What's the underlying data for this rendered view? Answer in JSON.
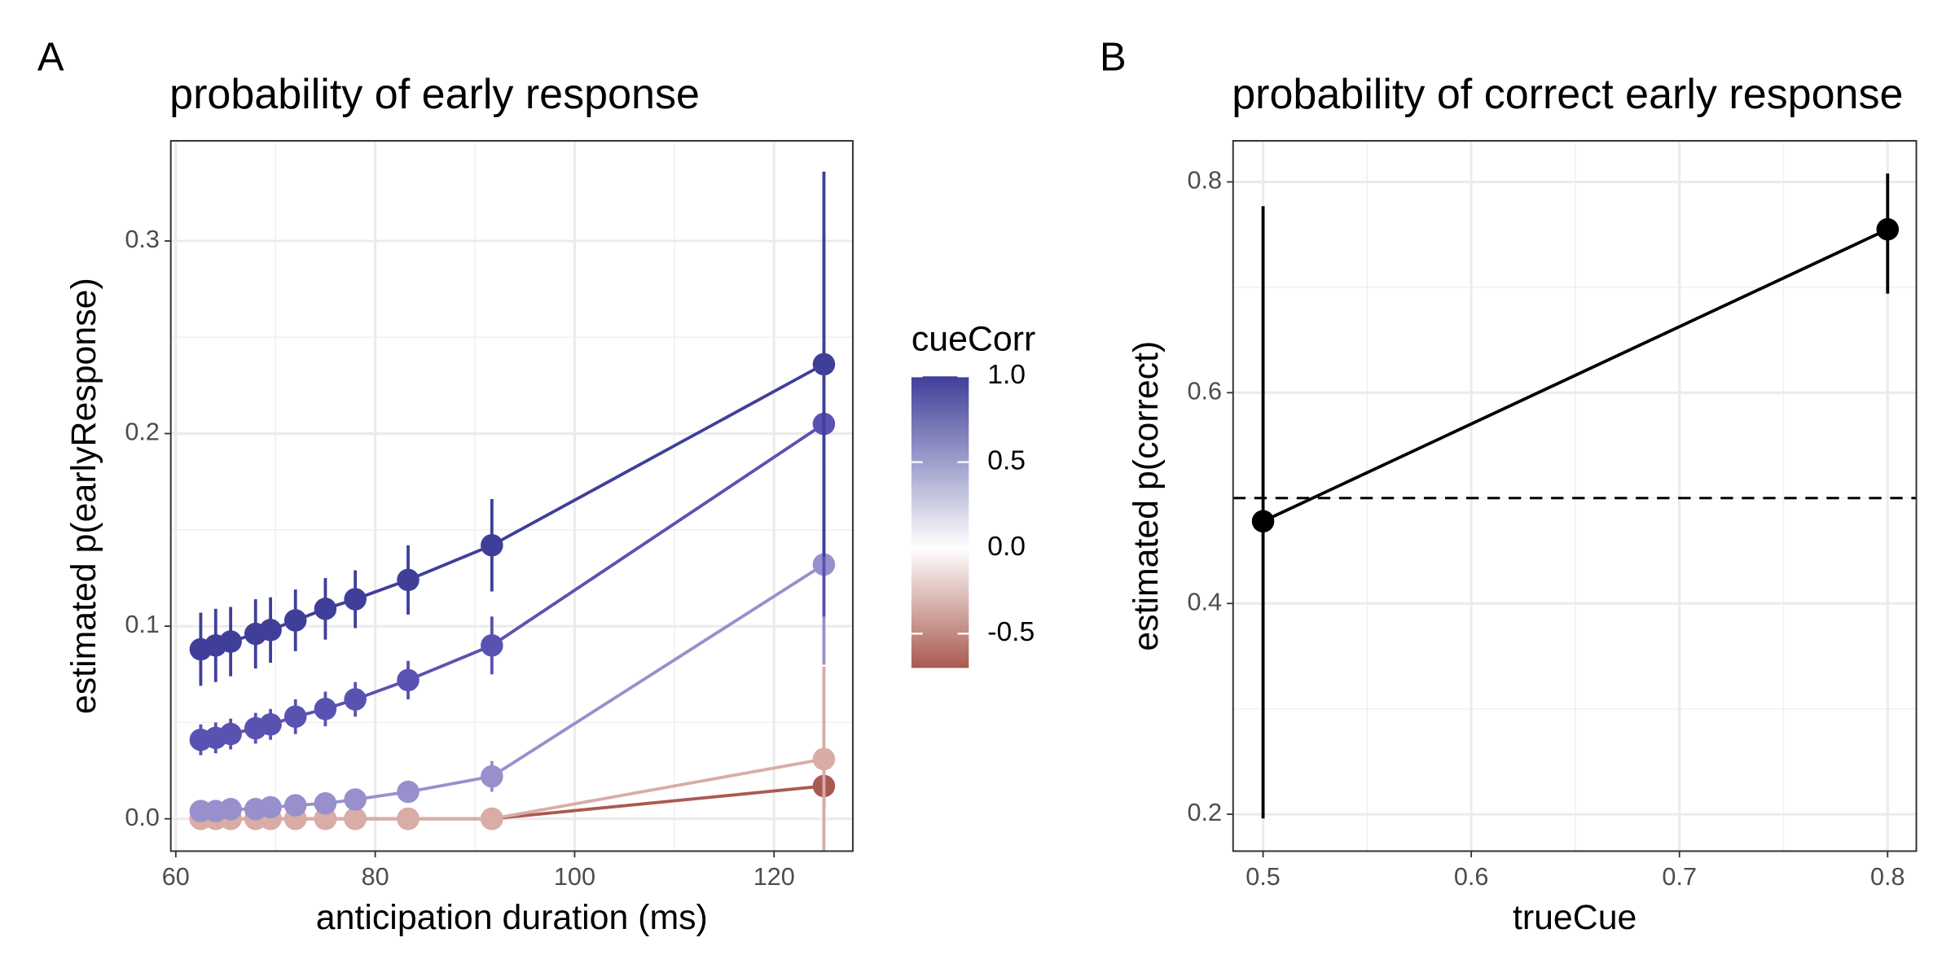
{
  "chart_data": [
    {
      "type": "line",
      "panel": "A",
      "title": "probability of early response",
      "x_label": "anticipation duration (ms)",
      "y_label": "estimated p(earlyResponse)",
      "x": [
        62.5,
        64,
        65.5,
        68,
        69.5,
        72,
        75,
        78,
        83.3,
        91.7,
        125
      ],
      "series": [
        {
          "color": "#a95a50",
          "values": [
            0,
            0,
            0,
            0,
            0,
            0,
            0,
            0,
            0,
            0,
            0.017
          ],
          "errors": [
            0.001,
            0.001,
            0.001,
            0.001,
            0.001,
            0.001,
            0.001,
            0.001,
            0.001,
            0.002,
            0.012
          ]
        },
        {
          "color": "#d9aca6",
          "values": [
            0,
            0,
            0,
            0,
            0,
            0,
            0,
            0,
            0,
            0,
            0.031
          ],
          "errors": [
            0.001,
            0.001,
            0.001,
            0.001,
            0.001,
            0.001,
            0.001,
            0.001,
            0.002,
            0.003,
            0.048
          ]
        },
        {
          "color": "#9890cc",
          "values": [
            0.004,
            0.004,
            0.005,
            0.005,
            0.006,
            0.007,
            0.008,
            0.01,
            0.014,
            0.022,
            0.132
          ],
          "errors": [
            0.002,
            0.002,
            0.002,
            0.002,
            0.002,
            0.003,
            0.003,
            0.003,
            0.004,
            0.008,
            0.052
          ]
        },
        {
          "color": "#5a52b0",
          "values": [
            0.041,
            0.042,
            0.044,
            0.047,
            0.049,
            0.053,
            0.057,
            0.062,
            0.072,
            0.09,
            0.205
          ],
          "errors": [
            0.008,
            0.008,
            0.008,
            0.008,
            0.008,
            0.009,
            0.009,
            0.009,
            0.01,
            0.015,
            0.1
          ]
        },
        {
          "color": "#3f3f9a",
          "values": [
            0.088,
            0.09,
            0.092,
            0.096,
            0.098,
            0.103,
            0.109,
            0.114,
            0.124,
            0.142,
            0.236
          ],
          "errors": [
            0.019,
            0.019,
            0.018,
            0.018,
            0.017,
            0.016,
            0.016,
            0.015,
            0.018,
            0.024,
            0.1
          ]
        }
      ],
      "xlim": [
        59.5,
        127.9
      ],
      "ylim": [
        -0.0168,
        0.352
      ],
      "xticks": [
        60,
        80,
        100,
        120
      ],
      "yticks": [
        {
          "value": 0,
          "label": "0.0"
        },
        0.1,
        0.2,
        0.3
      ],
      "grid": true,
      "legend": {
        "title": "cueCorr",
        "lim": [
          -0.7,
          1.0
        ],
        "ticks": [
          {
            "value": 1,
            "label": "1.0"
          },
          0.5,
          {
            "value": 0,
            "label": "0.0"
          },
          -0.5
        ],
        "stops": [
          -0.7,
          0,
          1
        ],
        "colors": [
          "#a95a50",
          "#ffffff",
          "#3f3f9a"
        ]
      }
    },
    {
      "type": "line",
      "panel": "B",
      "title": "probability of correct early response",
      "x_label": "trueCue",
      "y_label": "estimated p(correct)",
      "x": [
        0.5,
        0.8
      ],
      "series": [
        {
          "color": "#000000",
          "values": [
            0.478,
            0.755
          ],
          "lower": [
            0.196,
            0.694
          ],
          "upper": [
            0.777,
            0.808
          ]
        }
      ],
      "hline": 0.5,
      "xlim": [
        0.4856,
        0.8138
      ],
      "ylim": [
        0.165,
        0.839
      ],
      "xticks": [
        0.5,
        0.6,
        0.7,
        0.8
      ],
      "yticks": [
        0.2,
        0.4,
        0.6,
        0.8
      ],
      "grid": true
    }
  ]
}
